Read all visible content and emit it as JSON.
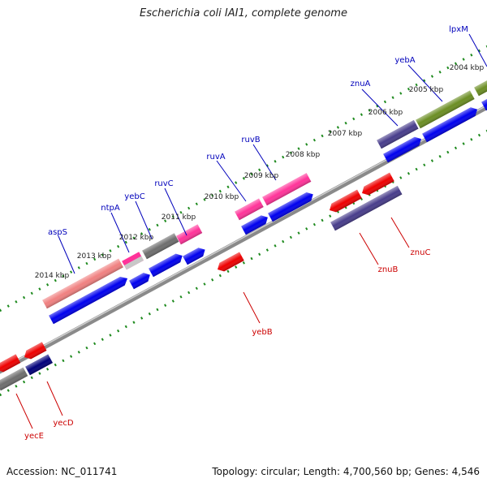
{
  "title": "Escherichia coli IAI1, complete genome",
  "footer": {
    "accession": "Accession: NC_011741",
    "summary": "Topology: circular; Length: 4,700,560 bp; Genes: 4,546"
  },
  "colors": {
    "backbone": "#8a8a8a",
    "tick": "#1e8a1e",
    "label_forward": "#0000bb",
    "label_reverse": "#cc0000",
    "forward_cds": "#0000ee",
    "reverse_cds": "#ee0000",
    "salmon": "#f08080",
    "pink": "#ff3399",
    "grey": "#6e6e6e",
    "olive": "#6b8e23",
    "slate": "#483d8b",
    "navy": "#00007a"
  },
  "ticks": [
    {
      "label": "2004 kbp"
    },
    {
      "label": "2005 kbp"
    },
    {
      "label": "2006 kbp"
    },
    {
      "label": "2007 kbp"
    },
    {
      "label": "2008 kbp"
    },
    {
      "label": "2009 kbp"
    },
    {
      "label": "2010 kbp"
    },
    {
      "label": "2011 kbp"
    },
    {
      "label": "2012 kbp"
    },
    {
      "label": "2013 kbp"
    },
    {
      "label": "2014 kbp"
    }
  ],
  "labels": [
    {
      "text": "lpxM",
      "strand": "forward"
    },
    {
      "text": "yebA",
      "strand": "forward"
    },
    {
      "text": "znuA",
      "strand": "forward"
    },
    {
      "text": "ruvB",
      "strand": "forward"
    },
    {
      "text": "ruvA",
      "strand": "forward"
    },
    {
      "text": "ruvC",
      "strand": "forward"
    },
    {
      "text": "yebC",
      "strand": "forward"
    },
    {
      "text": "ntpA",
      "strand": "forward"
    },
    {
      "text": "aspS",
      "strand": "forward"
    },
    {
      "text": "znuC",
      "strand": "reverse"
    },
    {
      "text": "znuB",
      "strand": "reverse"
    },
    {
      "text": "yebB",
      "strand": "reverse"
    },
    {
      "text": "yecD",
      "strand": "reverse"
    },
    {
      "text": "yecE",
      "strand": "reverse"
    }
  ]
}
